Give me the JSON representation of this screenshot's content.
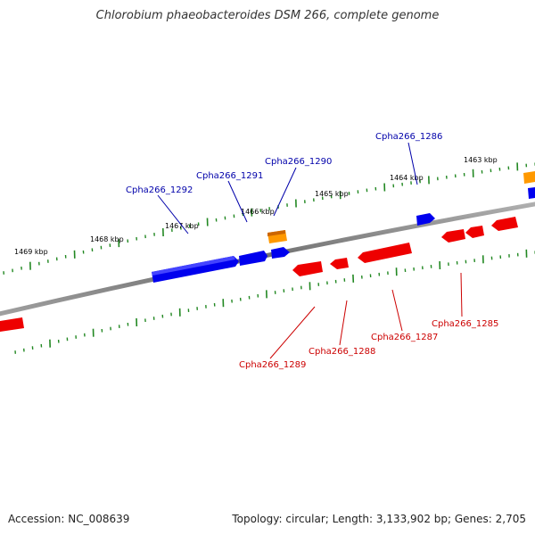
{
  "title": "Chlorobium phaeobacteroides DSM 266, complete genome",
  "footer": {
    "accession": "Accession: NC_008639",
    "summary": "Topology: circular; Length: 3,133,902 bp; Genes: 2,705"
  },
  "colors": {
    "forward_gene": "#0000ee",
    "reverse_gene": "#ee0000",
    "rna_gene": "#ff9900",
    "backbone": "#808080",
    "tick": "#228822",
    "forward_label": "#0000aa",
    "reverse_label": "#cc0000"
  },
  "kbp_labels": [
    "1469 kbp",
    "1468 kbp",
    "1467 kbp",
    "1466 kbp",
    "1465 kbp",
    "1464 kbp",
    "1463 kbp"
  ],
  "forward_labels": [
    "Cpha266_1292",
    "Cpha266_1291",
    "Cpha266_1290",
    "Cpha266_1286"
  ],
  "reverse_labels": [
    "Cpha266_1289",
    "Cpha266_1288",
    "Cpha266_1287",
    "Cpha266_1285"
  ]
}
